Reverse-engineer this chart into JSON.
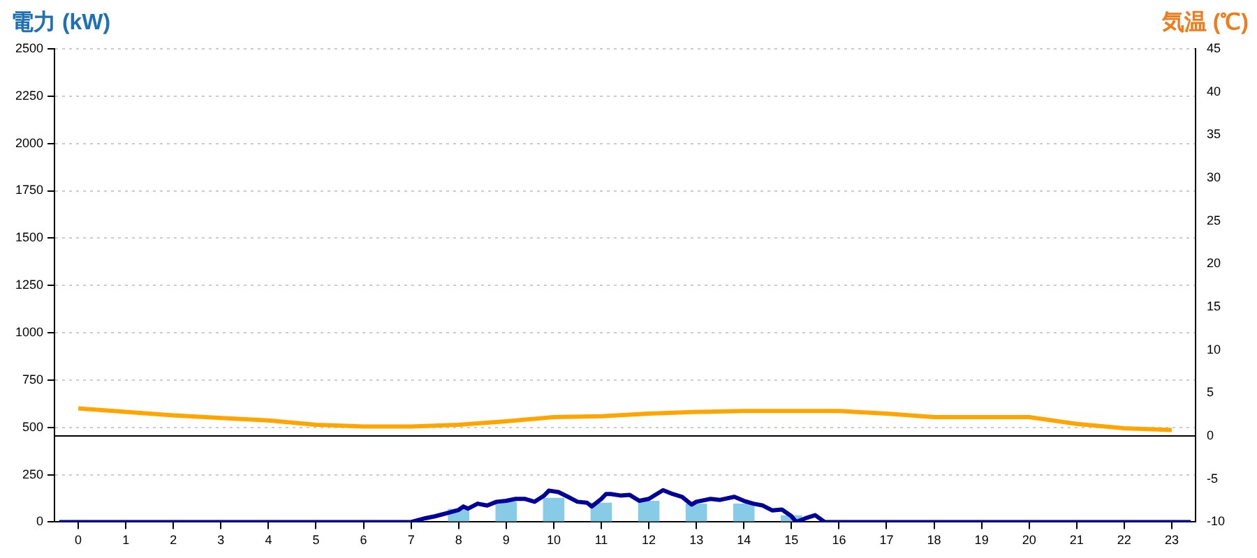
{
  "chart_data": {
    "type": "bar",
    "ylabel": "電力 (kW)",
    "y2label": "気温 (℃)",
    "x": [
      0,
      1,
      2,
      3,
      4,
      5,
      6,
      7,
      8,
      9,
      10,
      11,
      12,
      13,
      14,
      15,
      16,
      17,
      18,
      19,
      20,
      21,
      22,
      23
    ],
    "xlim": [
      -0.5,
      23.5
    ],
    "xticks": [
      0,
      1,
      2,
      3,
      4,
      5,
      6,
      7,
      8,
      9,
      10,
      11,
      12,
      13,
      14,
      15,
      16,
      17,
      18,
      19,
      20,
      21,
      22,
      23
    ],
    "ylim": [
      0,
      2500
    ],
    "yticks": [
      0,
      250,
      500,
      750,
      1000,
      1250,
      1500,
      1750,
      2000,
      2250,
      2500
    ],
    "y2lim": [
      -10,
      45
    ],
    "y2ticks": [
      -10,
      -5,
      0,
      5,
      10,
      15,
      20,
      25,
      30,
      35,
      40,
      45
    ],
    "grid": "y",
    "legend": false,
    "ref_lines": [
      {
        "axis": "y2",
        "value": 0,
        "color": "#000000"
      }
    ],
    "series": [
      {
        "color": "#87cbe6",
        "values": [
          0,
          0,
          0,
          0,
          0,
          0,
          0,
          0,
          70,
          107,
          128,
          102,
          112,
          97,
          97,
          36,
          0,
          0,
          0,
          0,
          0,
          0,
          0,
          0
        ]
      },
      {
        "type": "line",
        "color": "#000099",
        "x": [
          -0.4,
          7.0,
          7.3,
          7.5,
          7.8,
          8.0,
          8.1,
          8.2,
          8.4,
          8.6,
          8.8,
          9.0,
          9.2,
          9.4,
          9.6,
          9.8,
          9.9,
          10.1,
          10.3,
          10.5,
          10.7,
          10.8,
          11.0,
          11.1,
          11.2,
          11.4,
          11.6,
          11.8,
          12.0,
          12.3,
          12.5,
          12.7,
          12.9,
          13.0,
          13.3,
          13.5,
          13.8,
          14.0,
          14.2,
          14.4,
          14.6,
          14.8,
          15.0,
          15.1,
          15.3,
          15.5,
          15.7,
          23.4
        ],
        "values": [
          0,
          0,
          20,
          30,
          50,
          64,
          82,
          71,
          97,
          87,
          107,
          112,
          122,
          122,
          107,
          140,
          166,
          158,
          133,
          107,
          102,
          82,
          122,
          148,
          148,
          140,
          143,
          112,
          122,
          168,
          148,
          133,
          92,
          107,
          122,
          117,
          133,
          112,
          97,
          87,
          61,
          66,
          31,
          0,
          20,
          36,
          0,
          0
        ]
      },
      {
        "type": "line",
        "axis": "y2",
        "color": "#ffa500",
        "values": [
          3.2,
          2.8,
          2.4,
          2.1,
          1.8,
          1.3,
          1.1,
          1.1,
          1.3,
          1.7,
          2.2,
          2.3,
          2.6,
          2.8,
          2.9,
          2.9,
          2.9,
          2.6,
          2.2,
          2.2,
          2.2,
          1.4,
          0.9,
          0.7
        ]
      }
    ]
  }
}
